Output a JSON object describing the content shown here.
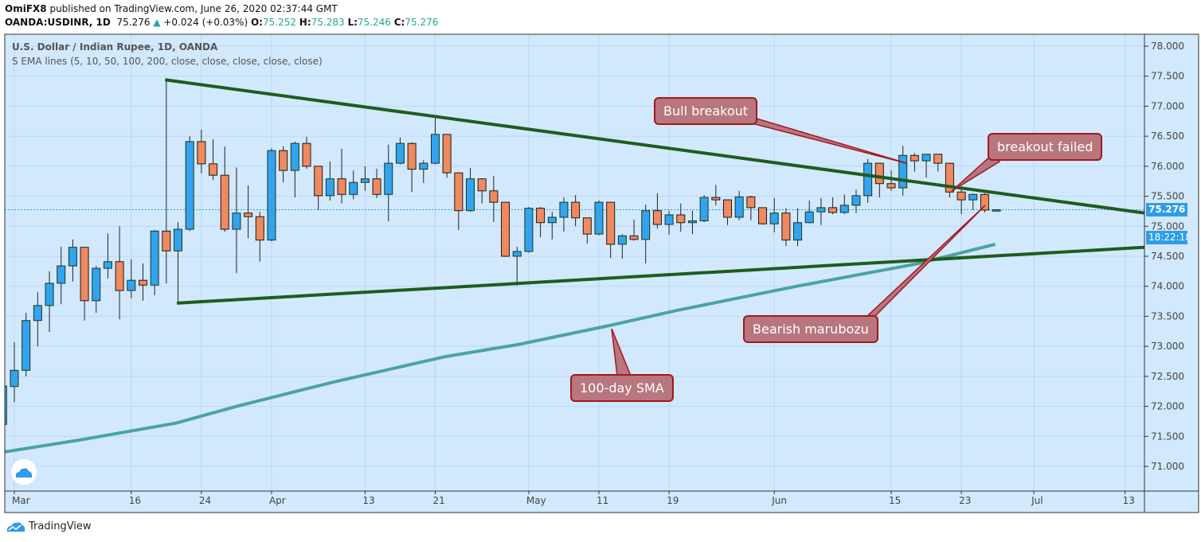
{
  "header": {
    "author": "OmiFX8",
    "published": "published on TradingView.com, June 26, 2020 02:37:44 GMT",
    "symbol": "OANDA:USDINR, 1D",
    "last": "75.276",
    "change": "+0.024 (+0.03%)",
    "o_label": "O:",
    "o": "75.252",
    "h_label": "H:",
    "h": "75.283",
    "l_label": "L:",
    "l": "75.246",
    "c_label": "C:",
    "c": "75.276"
  },
  "legend": {
    "title": "U.S. Dollar / Indian Rupee, 1D, OANDA",
    "indicator": "S EMA lines (5, 10, 50, 100, 200, close, close, close, close, close)"
  },
  "price_tag": "75.276",
  "countdown_tag": "18:22:18",
  "footer": {
    "brand": "TradingView"
  },
  "annotations": {
    "bull": "Bull breakout",
    "failed": "breakout failed",
    "marubozu": "Bearish marubozu",
    "sma": "100-day SMA"
  },
  "colors": {
    "up": "#33a3f0",
    "down": "#ef8a5e",
    "trend": "#1e5c1e",
    "sma": "#4aa3a2",
    "bg": "#d2e8fd",
    "grid": "#b6d7fa"
  },
  "chart_data": {
    "type": "candlestick",
    "title": "U.S. Dollar / Indian Rupee, 1D, OANDA",
    "x_unit": "trading day index (0 = Mar 2, 2020)",
    "ylim": [
      70.7,
      78.2
    ],
    "y_ticks": [
      "71.000",
      "71.500",
      "72.000",
      "72.500",
      "73.000",
      "73.500",
      "74.000",
      "74.500",
      "75.000",
      "75.500",
      "76.000",
      "76.500",
      "77.000",
      "77.500",
      "78.000"
    ],
    "x_ticks": [
      {
        "label": "Mar",
        "i": 0
      },
      {
        "label": "16",
        "i": 10
      },
      {
        "label": "24",
        "i": 16
      },
      {
        "label": "Apr",
        "i": 22
      },
      {
        "label": "13",
        "i": 30
      },
      {
        "label": "21",
        "i": 36
      },
      {
        "label": "May",
        "i": 44
      },
      {
        "label": "11",
        "i": 50
      },
      {
        "label": "19",
        "i": 56
      },
      {
        "label": "Jun",
        "i": 65
      },
      {
        "label": "15",
        "i": 75
      },
      {
        "label": "23",
        "i": 81
      },
      {
        "label": "Jul",
        "i": 87.2
      },
      {
        "label": "13",
        "i": 95
      }
    ],
    "first_index": -1,
    "ohlc": [
      [
        71.7,
        72.36,
        71.68,
        72.34
      ],
      [
        72.33,
        73.07,
        72.07,
        72.6
      ],
      [
        72.6,
        73.56,
        72.5,
        73.43
      ],
      [
        73.43,
        73.9,
        73.0,
        73.68
      ],
      [
        73.68,
        74.25,
        73.24,
        74.05
      ],
      [
        74.05,
        74.66,
        73.7,
        74.34
      ],
      [
        74.34,
        74.78,
        74.08,
        74.65
      ],
      [
        74.65,
        74.65,
        73.43,
        73.76
      ],
      [
        73.76,
        74.34,
        73.56,
        74.3
      ],
      [
        74.3,
        74.88,
        74.13,
        74.41
      ],
      [
        74.41,
        75.0,
        73.45,
        73.93
      ],
      [
        73.93,
        74.45,
        73.8,
        74.1
      ],
      [
        74.1,
        74.38,
        73.76,
        74.02
      ],
      [
        74.02,
        74.94,
        73.85,
        74.92
      ],
      [
        74.92,
        77.45,
        74.05,
        74.59
      ],
      [
        74.59,
        75.07,
        73.72,
        74.95
      ],
      [
        74.95,
        76.5,
        74.92,
        76.41
      ],
      [
        76.41,
        76.61,
        75.88,
        76.04
      ],
      [
        76.04,
        76.45,
        75.77,
        75.85
      ],
      [
        75.85,
        76.33,
        74.91,
        74.95
      ],
      [
        74.95,
        75.98,
        74.22,
        75.22
      ],
      [
        75.22,
        75.68,
        74.8,
        75.16
      ],
      [
        75.16,
        75.24,
        74.41,
        74.77
      ],
      [
        74.77,
        76.3,
        74.75,
        76.26
      ],
      [
        76.26,
        76.33,
        75.73,
        75.93
      ],
      [
        75.93,
        76.41,
        75.48,
        76.38
      ],
      [
        76.38,
        76.49,
        75.96,
        76.0
      ],
      [
        76.0,
        76.0,
        75.27,
        75.51
      ],
      [
        75.51,
        76.08,
        75.43,
        75.79
      ],
      [
        75.79,
        76.29,
        75.38,
        75.53
      ],
      [
        75.53,
        75.93,
        75.45,
        75.73
      ],
      [
        75.73,
        76.0,
        75.59,
        75.79
      ],
      [
        75.79,
        75.96,
        75.47,
        75.53
      ],
      [
        75.53,
        76.36,
        75.08,
        76.05
      ],
      [
        76.05,
        76.48,
        76.03,
        76.38
      ],
      [
        76.38,
        76.4,
        75.57,
        75.95
      ],
      [
        75.95,
        76.1,
        75.72,
        76.05
      ],
      [
        76.05,
        76.8,
        76.03,
        76.53
      ],
      [
        76.53,
        76.53,
        75.81,
        75.89
      ],
      [
        75.89,
        75.89,
        74.94,
        75.26
      ],
      [
        75.26,
        75.97,
        75.24,
        75.79
      ],
      [
        75.79,
        75.8,
        75.38,
        75.59
      ],
      [
        75.59,
        75.84,
        75.07,
        75.4
      ],
      [
        75.4,
        75.4,
        74.49,
        74.5
      ],
      [
        74.5,
        74.66,
        74.01,
        74.58
      ],
      [
        74.58,
        75.32,
        74.56,
        75.3
      ],
      [
        75.3,
        75.32,
        74.82,
        75.06
      ],
      [
        75.06,
        75.24,
        74.78,
        75.15
      ],
      [
        75.15,
        75.48,
        74.91,
        75.4
      ],
      [
        75.4,
        75.52,
        75.0,
        75.14
      ],
      [
        75.14,
        75.14,
        74.71,
        74.87
      ],
      [
        74.87,
        75.43,
        74.85,
        75.4
      ],
      [
        75.4,
        75.4,
        74.47,
        74.7
      ],
      [
        74.7,
        74.87,
        74.46,
        74.84
      ],
      [
        74.84,
        75.11,
        74.76,
        74.78
      ],
      [
        74.78,
        75.36,
        74.38,
        75.26
      ],
      [
        75.26,
        75.55,
        74.96,
        75.03
      ],
      [
        75.03,
        75.26,
        74.86,
        75.19
      ],
      [
        75.19,
        75.38,
        74.91,
        75.06
      ],
      [
        75.06,
        75.26,
        74.87,
        75.09
      ],
      [
        75.09,
        75.52,
        75.07,
        75.48
      ],
      [
        75.48,
        75.69,
        75.35,
        75.44
      ],
      [
        75.44,
        75.44,
        75.02,
        75.15
      ],
      [
        75.15,
        75.59,
        75.1,
        75.49
      ],
      [
        75.49,
        75.51,
        75.1,
        75.31
      ],
      [
        75.31,
        75.31,
        75.03,
        75.04
      ],
      [
        75.04,
        75.47,
        74.9,
        75.22
      ],
      [
        75.22,
        75.3,
        74.67,
        74.77
      ],
      [
        74.77,
        75.3,
        74.67,
        75.06
      ],
      [
        75.06,
        75.43,
        75.05,
        75.24
      ],
      [
        75.24,
        75.47,
        75.02,
        75.31
      ],
      [
        75.31,
        75.48,
        75.2,
        75.23
      ],
      [
        75.23,
        75.53,
        75.2,
        75.35
      ],
      [
        75.35,
        75.61,
        75.22,
        75.51
      ],
      [
        75.51,
        76.12,
        75.39,
        76.05
      ],
      [
        76.05,
        76.05,
        75.48,
        75.71
      ],
      [
        75.71,
        75.93,
        75.59,
        75.64
      ],
      [
        75.64,
        76.34,
        75.51,
        76.18
      ],
      [
        76.18,
        76.22,
        75.91,
        76.09
      ],
      [
        76.09,
        76.2,
        75.81,
        76.2
      ],
      [
        76.2,
        76.2,
        75.91,
        76.05
      ],
      [
        76.05,
        76.05,
        75.48,
        75.57
      ],
      [
        75.57,
        75.65,
        75.2,
        75.44
      ],
      [
        75.44,
        75.55,
        75.27,
        75.53
      ],
      [
        75.53,
        75.55,
        75.23,
        75.27
      ],
      [
        75.252,
        75.283,
        75.246,
        75.276
      ]
    ],
    "sma_100": [
      [
        -0.9,
        71.24
      ],
      [
        5.6,
        71.44
      ],
      [
        13.8,
        71.72
      ],
      [
        19.2,
        72.01
      ],
      [
        27.4,
        72.41
      ],
      [
        36.9,
        72.83
      ],
      [
        43.1,
        73.03
      ],
      [
        50.5,
        73.33
      ],
      [
        56.7,
        73.6
      ],
      [
        66.9,
        74.0
      ],
      [
        77.1,
        74.37
      ],
      [
        83.9,
        74.7
      ]
    ],
    "trendlines": [
      {
        "name": "upper",
        "points": [
          [
            12.9,
            77.44
          ],
          [
            96.7,
            75.22
          ]
        ]
      },
      {
        "name": "lower",
        "points": [
          [
            13.9,
            73.72
          ],
          [
            96.7,
            74.65
          ]
        ]
      }
    ],
    "last_price_line": 75.276
  }
}
